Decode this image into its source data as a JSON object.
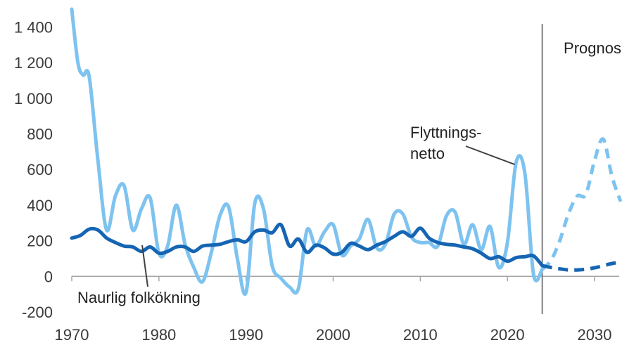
{
  "chart_data": {
    "type": "line",
    "title": "",
    "xlabel": "",
    "ylabel": "",
    "xlim": [
      1970,
      2033
    ],
    "ylim": [
      -200,
      1500
    ],
    "x_ticks": [
      1970,
      1980,
      1990,
      2000,
      2010,
      2020,
      2030
    ],
    "x_tick_labels": [
      "1970",
      "1980",
      "1990",
      "2000",
      "2010",
      "2020",
      "2030"
    ],
    "y_ticks": [
      -200,
      0,
      200,
      400,
      600,
      800,
      1000,
      1200,
      1400
    ],
    "y_tick_labels": [
      "-200",
      "0",
      "200",
      "400",
      "600",
      "800",
      "1 000",
      "1 200",
      "1 400"
    ],
    "grid": false,
    "forecast_start": 2024,
    "forecast_label": "Prognos",
    "series": [
      {
        "name": "Flyttnings-netto",
        "color": "#7ec3f0",
        "historical": [
          [
            1970,
            1500
          ],
          [
            1970.7,
            1200
          ],
          [
            1971.3,
            1130
          ],
          [
            1972,
            1120
          ],
          [
            1973,
            650
          ],
          [
            1974,
            260
          ],
          [
            1975,
            450
          ],
          [
            1976,
            510
          ],
          [
            1977,
            260
          ],
          [
            1978,
            380
          ],
          [
            1979,
            440
          ],
          [
            1980,
            130
          ],
          [
            1981,
            170
          ],
          [
            1982,
            400
          ],
          [
            1983,
            180
          ],
          [
            1984,
            50
          ],
          [
            1985,
            -30
          ],
          [
            1986,
            130
          ],
          [
            1987,
            340
          ],
          [
            1988,
            390
          ],
          [
            1989,
            100
          ],
          [
            1990,
            -90
          ],
          [
            1991,
            410
          ],
          [
            1992,
            380
          ],
          [
            1993,
            60
          ],
          [
            1994,
            -10
          ],
          [
            1995,
            -60
          ],
          [
            1996,
            -70
          ],
          [
            1997,
            260
          ],
          [
            1998,
            170
          ],
          [
            1999,
            250
          ],
          [
            2000,
            290
          ],
          [
            2001,
            120
          ],
          [
            2002,
            170
          ],
          [
            2003,
            210
          ],
          [
            2004,
            320
          ],
          [
            2005,
            160
          ],
          [
            2006,
            180
          ],
          [
            2007,
            350
          ],
          [
            2008,
            350
          ],
          [
            2009,
            220
          ],
          [
            2010,
            190
          ],
          [
            2011,
            190
          ],
          [
            2012,
            170
          ],
          [
            2013,
            340
          ],
          [
            2014,
            360
          ],
          [
            2015,
            180
          ],
          [
            2016,
            290
          ],
          [
            2017,
            150
          ],
          [
            2018,
            280
          ],
          [
            2019,
            50
          ],
          [
            2020,
            190
          ],
          [
            2021,
            640
          ],
          [
            2022,
            580
          ],
          [
            2023,
            10
          ],
          [
            2024,
            40
          ]
        ],
        "forecast": [
          [
            2024,
            40
          ],
          [
            2025,
            90
          ],
          [
            2026,
            200
          ],
          [
            2027,
            350
          ],
          [
            2028,
            450
          ],
          [
            2029,
            460
          ],
          [
            2030,
            650
          ],
          [
            2031,
            770
          ],
          [
            2032,
            560
          ],
          [
            2033,
            420
          ]
        ]
      },
      {
        "name": "Naurlig folkökning",
        "color": "#1565b3",
        "historical": [
          [
            1970,
            215
          ],
          [
            1971,
            230
          ],
          [
            1972,
            265
          ],
          [
            1973,
            260
          ],
          [
            1974,
            215
          ],
          [
            1975,
            190
          ],
          [
            1976,
            170
          ],
          [
            1977,
            165
          ],
          [
            1978,
            140
          ],
          [
            1979,
            165
          ],
          [
            1980,
            130
          ],
          [
            1981,
            140
          ],
          [
            1982,
            165
          ],
          [
            1983,
            165
          ],
          [
            1984,
            140
          ],
          [
            1985,
            170
          ],
          [
            1986,
            175
          ],
          [
            1987,
            180
          ],
          [
            1988,
            195
          ],
          [
            1989,
            205
          ],
          [
            1990,
            195
          ],
          [
            1991,
            250
          ],
          [
            1992,
            260
          ],
          [
            1993,
            245
          ],
          [
            1994,
            290
          ],
          [
            1995,
            170
          ],
          [
            1996,
            210
          ],
          [
            1997,
            135
          ],
          [
            1998,
            175
          ],
          [
            1999,
            160
          ],
          [
            2000,
            125
          ],
          [
            2001,
            135
          ],
          [
            2002,
            185
          ],
          [
            2003,
            170
          ],
          [
            2004,
            150
          ],
          [
            2005,
            175
          ],
          [
            2006,
            195
          ],
          [
            2007,
            225
          ],
          [
            2008,
            250
          ],
          [
            2009,
            225
          ],
          [
            2010,
            270
          ],
          [
            2011,
            215
          ],
          [
            2012,
            190
          ],
          [
            2013,
            180
          ],
          [
            2014,
            175
          ],
          [
            2015,
            165
          ],
          [
            2016,
            155
          ],
          [
            2017,
            130
          ],
          [
            2018,
            100
          ],
          [
            2019,
            110
          ],
          [
            2020,
            85
          ],
          [
            2021,
            105
          ],
          [
            2022,
            110
          ],
          [
            2023,
            115
          ],
          [
            2024,
            60
          ]
        ],
        "forecast": [
          [
            2024,
            60
          ],
          [
            2025,
            50
          ],
          [
            2026,
            42
          ],
          [
            2027,
            36
          ],
          [
            2028,
            36
          ],
          [
            2029,
            40
          ],
          [
            2030,
            48
          ],
          [
            2031,
            60
          ],
          [
            2032,
            72
          ],
          [
            2033,
            80
          ]
        ]
      }
    ],
    "annotations": [
      {
        "lines": [
          "Flyttnings-",
          "netto"
        ],
        "series": "Flyttnings-netto",
        "points_to": [
          2021,
          620
        ]
      },
      {
        "lines": [
          "Naurlig folkökning"
        ],
        "series": "Naurlig folkökning",
        "points_to": [
          1978,
          175
        ]
      }
    ]
  }
}
